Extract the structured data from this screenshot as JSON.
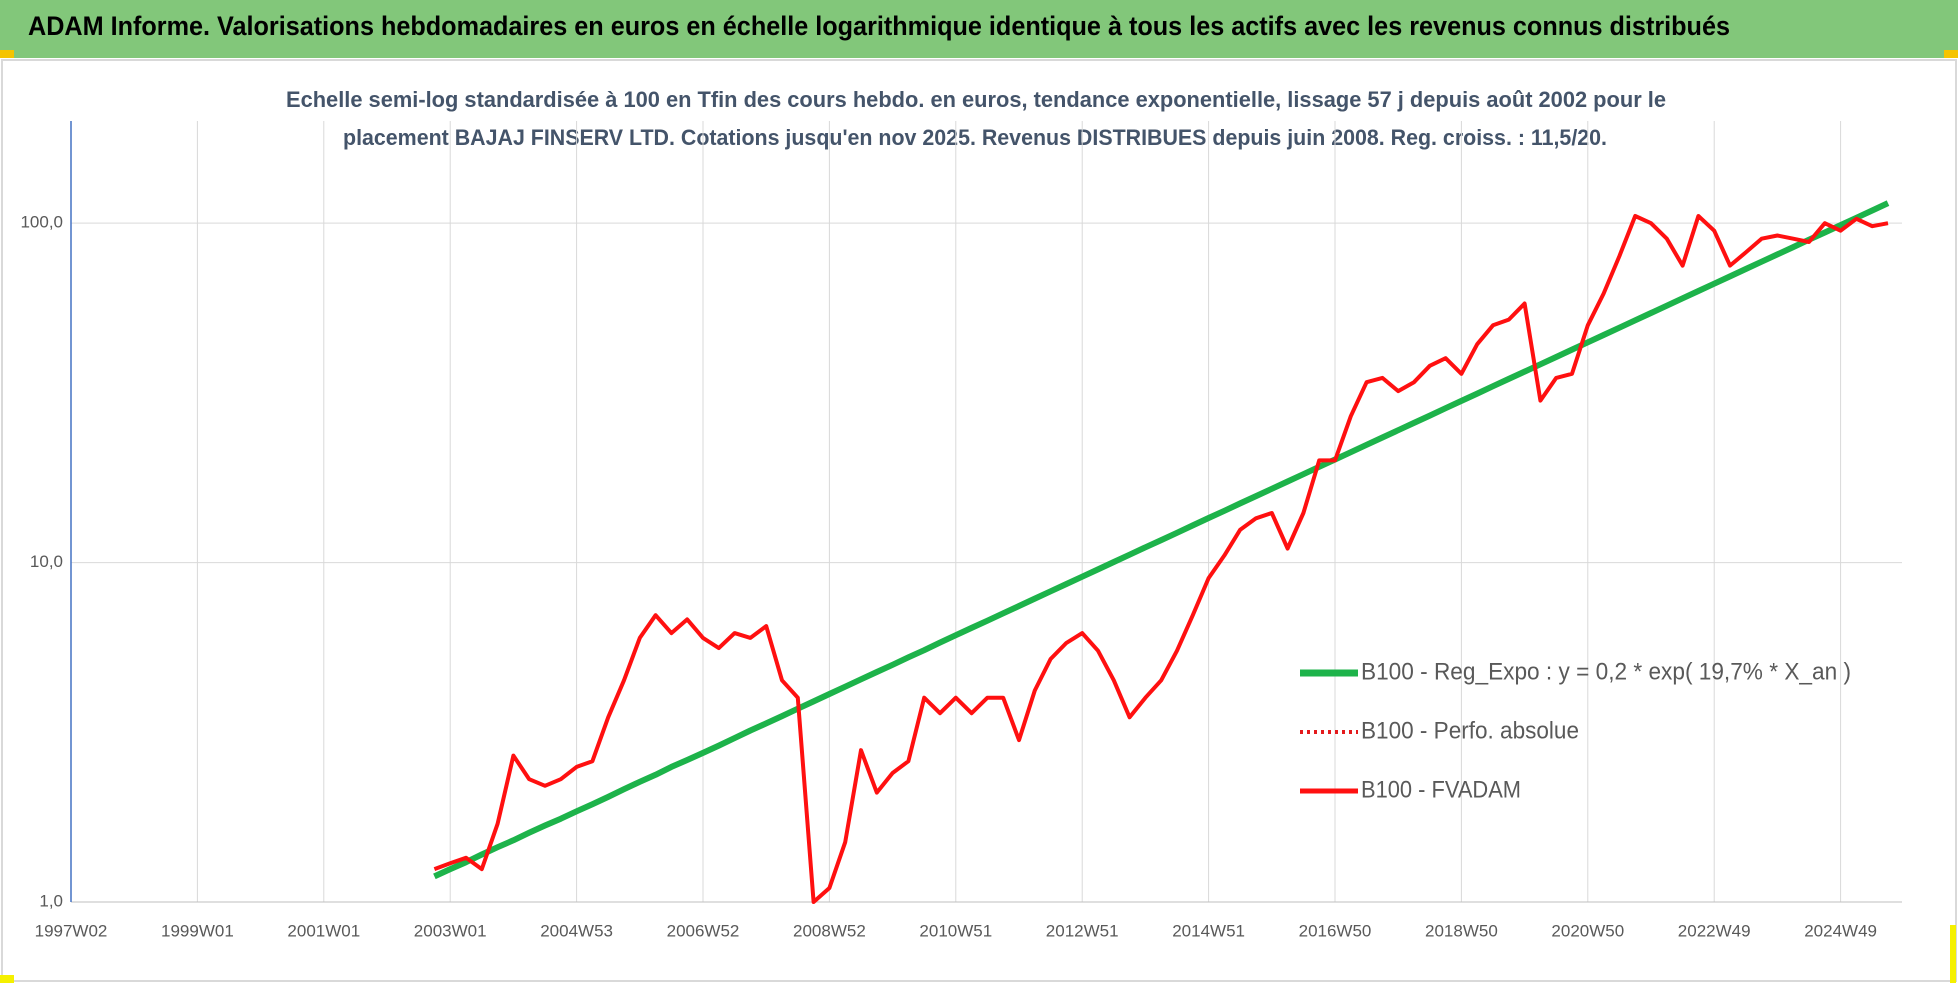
{
  "header": {
    "title": "ADAM Informe. Valorisations hebdomadaires en euros en échelle logarithmique identique à tous les actifs avec les revenus connus distribués"
  },
  "chart_data": {
    "type": "line",
    "subtitle": [
      "Echelle semi-log standardisée à 100 en Tfin des cours hebdo. en euros, tendance exponentielle, lissage 57 j depuis août 2002 pour le",
      "placement BAJAJ FINSERV  LTD. Cotations jusqu'en nov 2025. Revenus DISTRIBUES depuis juin 2008. Reg. croiss. : 11,5/20."
    ],
    "log_scale": true,
    "grid": true,
    "legend": "right",
    "ylim": [
      1,
      200
    ],
    "yticks": [
      {
        "value": 1,
        "label": "1,0"
      },
      {
        "value": 10,
        "label": "10,0"
      },
      {
        "value": 100,
        "label": "100,0"
      }
    ],
    "categories": [
      "1997W02",
      null,
      null,
      null,
      null,
      null,
      null,
      null,
      "1999W01",
      null,
      null,
      null,
      null,
      null,
      null,
      null,
      "2001W01",
      null,
      null,
      null,
      null,
      null,
      null,
      null,
      "2003W01",
      null,
      null,
      null,
      null,
      null,
      null,
      null,
      "2004W53",
      null,
      null,
      null,
      null,
      null,
      null,
      null,
      "2006W52",
      null,
      null,
      null,
      null,
      null,
      null,
      null,
      "2008W52",
      null,
      null,
      null,
      null,
      null,
      null,
      null,
      "2010W51",
      null,
      null,
      null,
      null,
      null,
      null,
      null,
      "2012W51",
      null,
      null,
      null,
      null,
      null,
      null,
      null,
      "2014W51",
      null,
      null,
      null,
      null,
      null,
      null,
      null,
      "2016W50",
      null,
      null,
      null,
      null,
      null,
      null,
      null,
      "2018W50",
      null,
      null,
      null,
      null,
      null,
      null,
      null,
      "2020W50",
      null,
      null,
      null,
      null,
      null,
      null,
      null,
      "2022W49",
      null,
      null,
      null,
      null,
      null,
      null,
      null,
      "2024W49",
      null,
      null,
      null
    ],
    "series": [
      {
        "name": "B100 - Reg_Expo : y = 0,2 * exp( 19,7% *  X_an )",
        "color": "#1db34a",
        "style": "solid",
        "width": 6,
        "values": [
          null,
          null,
          null,
          null,
          null,
          null,
          null,
          null,
          null,
          null,
          null,
          null,
          null,
          null,
          null,
          null,
          null,
          null,
          null,
          null,
          null,
          null,
          null,
          1.19,
          1.25,
          1.31,
          1.38,
          1.45,
          1.52,
          1.6,
          1.68,
          1.76,
          1.85,
          1.94,
          2.04,
          2.15,
          2.26,
          2.37,
          2.5,
          2.62,
          2.75,
          2.89,
          3.04,
          3.2,
          3.36,
          3.53,
          3.71,
          3.9,
          4.1,
          4.31,
          4.53,
          4.76,
          5.0,
          5.26,
          5.52,
          5.81,
          6.11,
          6.42,
          6.74,
          7.09,
          7.45,
          7.83,
          8.23,
          8.65,
          9.09,
          9.55,
          10.04,
          10.55,
          11.09,
          11.65,
          12.24,
          12.87,
          13.53,
          14.21,
          14.94,
          15.7,
          16.5,
          17.34,
          18.22,
          19.15,
          20.13,
          21.15,
          22.23,
          23.36,
          24.55,
          25.8,
          27.11,
          28.5,
          29.95,
          31.47,
          33.08,
          34.77,
          36.54,
          38.4,
          40.35,
          42.41,
          44.57,
          46.84,
          49.22,
          51.74,
          54.37,
          57.14,
          60.05,
          63.12,
          66.33,
          69.71,
          73.26,
          77.0,
          80.9,
          85.0,
          89.4,
          93.9,
          98.7,
          103.7,
          109.0,
          114.6
        ]
      },
      {
        "name": "B100 - Perfo. absolue",
        "color": "#e41a1c",
        "style": "dotted",
        "width": 3,
        "values": [
          null,
          null,
          null,
          null,
          null,
          null,
          null,
          null,
          null,
          null,
          null,
          null,
          null,
          null,
          null,
          null,
          null,
          null,
          null,
          null,
          null,
          null,
          null,
          null,
          null,
          null,
          null,
          null,
          null,
          null,
          null,
          null,
          null,
          null,
          null,
          null,
          null,
          null,
          null,
          null,
          null,
          null,
          null,
          null,
          null,
          null,
          null,
          null,
          null,
          null,
          null,
          null,
          null,
          null,
          null,
          null,
          null,
          null,
          null,
          null,
          null,
          null,
          null,
          null,
          null,
          null,
          null,
          null,
          null,
          null,
          null,
          null,
          null,
          null,
          null,
          null,
          null,
          null,
          null,
          null,
          null,
          null,
          null,
          null,
          null,
          null,
          null,
          null,
          null,
          null,
          null,
          null,
          null,
          null,
          null,
          null,
          null,
          null,
          null,
          null,
          null,
          null,
          null,
          null,
          null,
          null,
          null,
          null,
          null,
          null,
          null,
          null,
          null,
          null,
          null,
          null
        ]
      },
      {
        "name": "B100 - FVADAM",
        "color": "#ff1010",
        "style": "solid",
        "width": 4,
        "values": [
          null,
          null,
          null,
          null,
          null,
          null,
          null,
          null,
          null,
          null,
          null,
          null,
          null,
          null,
          null,
          null,
          null,
          null,
          null,
          null,
          null,
          null,
          null,
          1.25,
          1.3,
          1.35,
          1.25,
          1.7,
          2.7,
          2.3,
          2.2,
          2.3,
          2.5,
          2.6,
          3.5,
          4.5,
          6,
          7,
          6.2,
          6.8,
          6,
          5.6,
          6.2,
          6,
          6.5,
          4.5,
          4,
          1.0,
          1.1,
          1.5,
          2.8,
          2.1,
          2.4,
          2.6,
          4,
          3.6,
          4.0,
          3.6,
          4.0,
          4.0,
          3.0,
          4.2,
          5.2,
          5.8,
          6.2,
          5.5,
          4.5,
          3.5,
          4.0,
          4.5,
          5.5,
          7,
          9,
          10.5,
          12.5,
          13.5,
          14,
          11,
          14,
          20,
          20,
          27,
          34,
          35,
          32,
          34,
          38,
          40,
          36,
          44,
          50,
          52,
          58,
          30,
          35,
          36,
          50,
          62,
          80,
          105,
          100,
          90,
          75,
          105,
          95,
          75,
          82,
          90,
          92,
          90,
          88,
          100,
          95,
          103,
          98,
          100
        ]
      }
    ]
  }
}
